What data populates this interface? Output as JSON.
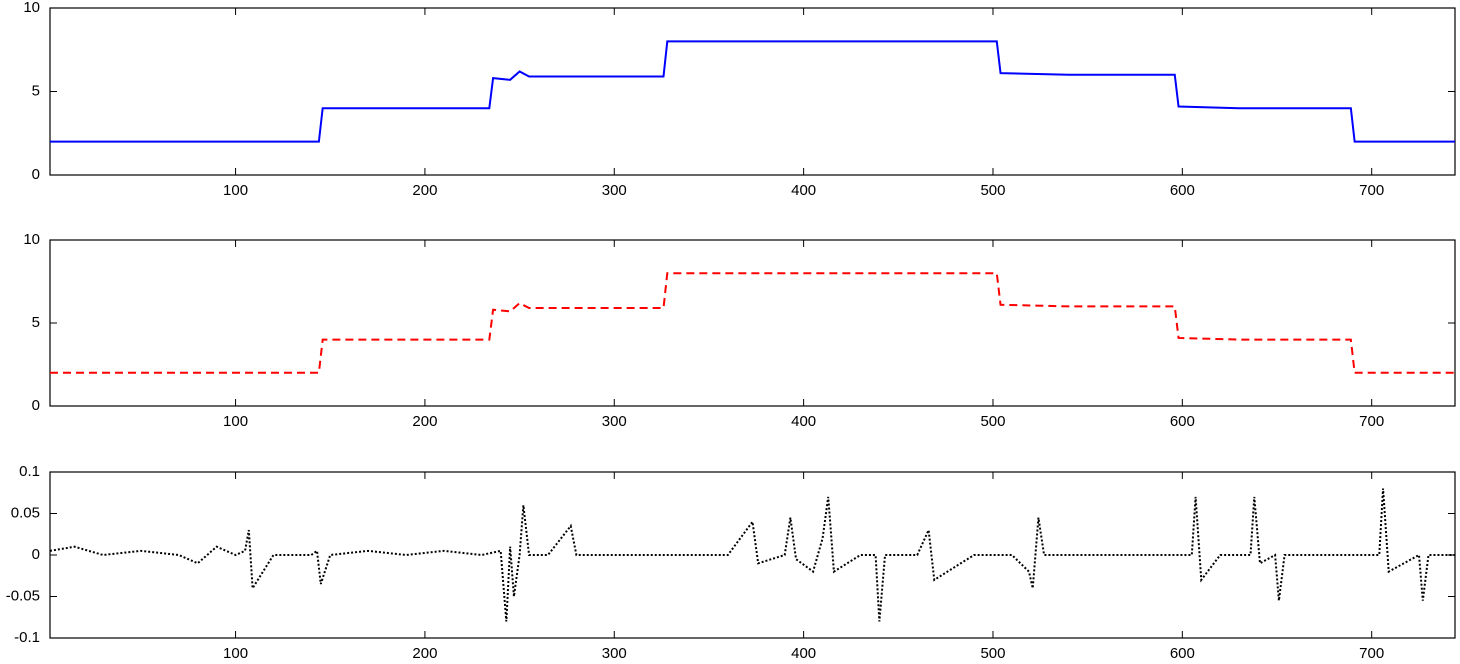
{
  "chart_data": [
    {
      "type": "line",
      "xlim": [
        2,
        744
      ],
      "ylim": [
        0,
        10
      ],
      "xticks": [
        100,
        200,
        300,
        400,
        500,
        600,
        700
      ],
      "yticks": [
        0,
        5,
        10
      ],
      "x": [
        2,
        20,
        40,
        60,
        80,
        100,
        120,
        144,
        146,
        170,
        200,
        220,
        234,
        236,
        245,
        250,
        255,
        270,
        300,
        326,
        328,
        360,
        400,
        440,
        480,
        502,
        504,
        540,
        570,
        596,
        598,
        630,
        660,
        689,
        691,
        720,
        744
      ],
      "series": [
        {
          "color": "#0000ff",
          "style": "solid",
          "values": [
            2,
            2,
            2,
            2,
            2,
            2,
            2,
            2,
            4,
            4,
            4,
            4,
            4,
            5.8,
            5.7,
            6.2,
            5.9,
            5.9,
            5.9,
            5.9,
            8,
            8,
            8,
            8,
            8,
            8,
            6.1,
            6,
            6,
            6,
            4.1,
            4,
            4,
            4,
            2,
            2,
            2
          ]
        }
      ]
    },
    {
      "type": "line",
      "xlim": [
        2,
        744
      ],
      "ylim": [
        0,
        10
      ],
      "xticks": [
        100,
        200,
        300,
        400,
        500,
        600,
        700
      ],
      "yticks": [
        0,
        5,
        10
      ],
      "x": [
        2,
        20,
        40,
        60,
        80,
        100,
        120,
        144,
        146,
        170,
        200,
        220,
        234,
        236,
        245,
        250,
        255,
        270,
        300,
        326,
        328,
        360,
        400,
        440,
        480,
        502,
        504,
        540,
        570,
        596,
        598,
        630,
        660,
        689,
        691,
        720,
        744
      ],
      "series": [
        {
          "color": "#ff0000",
          "style": "dashed",
          "values": [
            2,
            2,
            2,
            2,
            2,
            2,
            2,
            2,
            4,
            4,
            4,
            4,
            4,
            5.8,
            5.7,
            6.2,
            5.9,
            5.9,
            5.9,
            5.9,
            8,
            8,
            8,
            8,
            8,
            8,
            6.1,
            6,
            6,
            6,
            4.1,
            4,
            4,
            4,
            2,
            2,
            2
          ]
        }
      ]
    },
    {
      "type": "line",
      "xlim": [
        2,
        744
      ],
      "ylim": [
        -0.1,
        0.1
      ],
      "xticks": [
        100,
        200,
        300,
        400,
        500,
        600,
        700
      ],
      "yticks": [
        -0.1,
        -0.05,
        0,
        0.05,
        0.1
      ],
      "x": [
        2,
        15,
        30,
        50,
        70,
        80,
        90,
        100,
        105,
        107,
        109,
        120,
        140,
        143,
        145,
        150,
        170,
        190,
        210,
        230,
        240,
        243,
        245,
        247,
        250,
        252,
        255,
        265,
        277,
        280,
        300,
        330,
        360,
        373,
        376,
        390,
        393,
        396,
        405,
        410,
        413,
        416,
        430,
        438,
        440,
        443,
        460,
        466,
        469,
        490,
        510,
        519,
        521,
        524,
        527,
        550,
        580,
        605,
        607,
        610,
        620,
        636,
        638,
        641,
        649,
        651,
        654,
        680,
        704,
        706,
        709,
        725,
        727,
        730,
        744
      ],
      "series": [
        {
          "color": "#000000",
          "style": "dotted",
          "values": [
            0.005,
            0.01,
            0,
            0.005,
            0,
            -0.01,
            0.01,
            0,
            0.005,
            0.03,
            -0.04,
            0,
            0,
            0.005,
            -0.035,
            0,
            0.005,
            0,
            0.005,
            0,
            0.005,
            -0.08,
            0.01,
            -0.05,
            0,
            0.06,
            0,
            0,
            0.035,
            0,
            0,
            0,
            0,
            0.04,
            -0.01,
            0,
            0.045,
            -0.005,
            -0.02,
            0.02,
            0.07,
            -0.02,
            0,
            0,
            -0.08,
            0,
            0,
            0.03,
            -0.03,
            0,
            0,
            -0.02,
            -0.04,
            0.045,
            0,
            0,
            0,
            0,
            0.07,
            -0.03,
            0,
            0,
            0.07,
            -0.01,
            0,
            -0.055,
            0,
            0,
            0,
            0.08,
            -0.02,
            0,
            -0.055,
            0,
            0
          ]
        }
      ]
    }
  ]
}
